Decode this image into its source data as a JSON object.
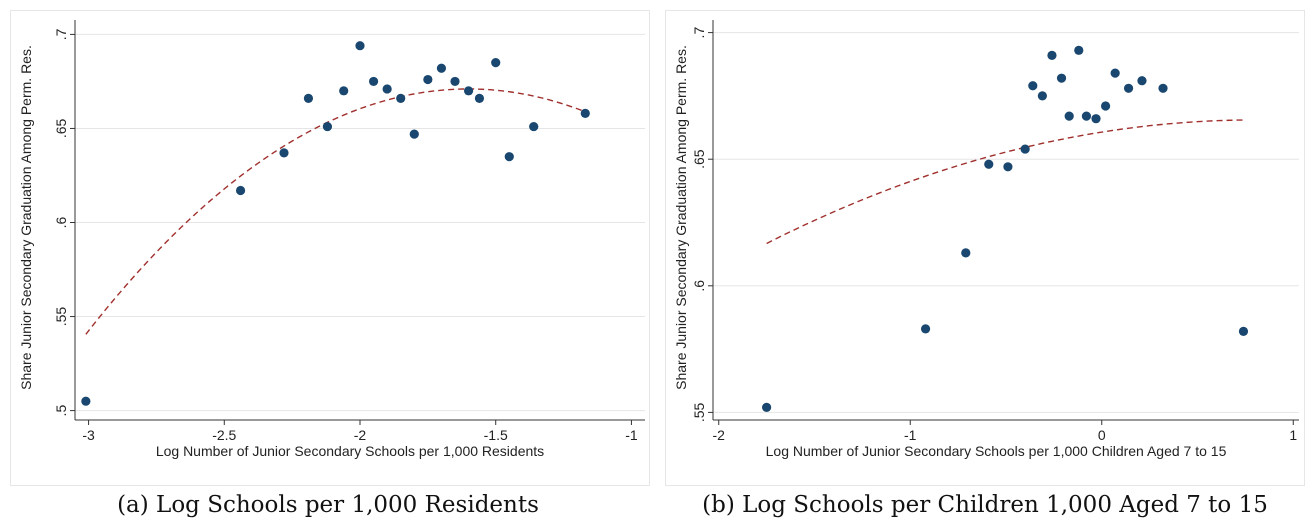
{
  "chart_data": [
    {
      "type": "scatter",
      "xlabel": "Log Number of Junior Secondary Schools per 1,000 Residents",
      "ylabel": "Share Junior Secondary Graduation Among Perm. Res.",
      "xlim": [
        -3.05,
        -0.95
      ],
      "ylim": [
        0.495,
        0.705
      ],
      "xticks": [
        -3,
        -2.5,
        -2,
        -1.5,
        -1
      ],
      "xtick_labels": [
        "-3",
        "-2.5",
        "-2",
        "-1.5",
        "-1"
      ],
      "yticks": [
        0.5,
        0.55,
        0.6,
        0.65,
        0.7
      ],
      "ytick_labels": [
        ".5",
        ".55",
        ".6",
        ".65",
        ".7"
      ],
      "grid": true,
      "points": [
        {
          "x": -3.01,
          "y": 0.505
        },
        {
          "x": -2.44,
          "y": 0.617
        },
        {
          "x": -2.28,
          "y": 0.637
        },
        {
          "x": -2.19,
          "y": 0.666
        },
        {
          "x": -2.12,
          "y": 0.651
        },
        {
          "x": -2.06,
          "y": 0.67
        },
        {
          "x": -2.0,
          "y": 0.694
        },
        {
          "x": -1.95,
          "y": 0.675
        },
        {
          "x": -1.9,
          "y": 0.671
        },
        {
          "x": -1.85,
          "y": 0.666
        },
        {
          "x": -1.8,
          "y": 0.647
        },
        {
          "x": -1.75,
          "y": 0.676
        },
        {
          "x": -1.7,
          "y": 0.682
        },
        {
          "x": -1.65,
          "y": 0.675
        },
        {
          "x": -1.6,
          "y": 0.67
        },
        {
          "x": -1.56,
          "y": 0.666
        },
        {
          "x": -1.5,
          "y": 0.685
        },
        {
          "x": -1.45,
          "y": 0.635
        },
        {
          "x": -1.36,
          "y": 0.651
        },
        {
          "x": -1.17,
          "y": 0.658
        }
      ],
      "fit": {
        "type": "quadratic",
        "x_range": [
          -3.01,
          -1.17
        ],
        "vertex_x": -1.6,
        "vertex_y": 0.671,
        "a": -0.0656
      }
    },
    {
      "type": "scatter",
      "xlabel": "Log Number of Junior Secondary Schools per 1,000 Children Aged 7 to 15",
      "ylabel": "Share Junior Secondary Graduation Among Perm. Res.",
      "xlim": [
        -2.03,
        1.03
      ],
      "ylim": [
        0.547,
        0.703
      ],
      "xticks": [
        -2,
        -1,
        0,
        1
      ],
      "xtick_labels": [
        "-2",
        "-1",
        "0",
        "1"
      ],
      "yticks": [
        0.55,
        0.6,
        0.65,
        0.7
      ],
      "ytick_labels": [
        ".55",
        ".6",
        ".65",
        ".7"
      ],
      "grid": true,
      "points": [
        {
          "x": -1.75,
          "y": 0.552
        },
        {
          "x": -0.92,
          "y": 0.583
        },
        {
          "x": -0.71,
          "y": 0.613
        },
        {
          "x": -0.59,
          "y": 0.648
        },
        {
          "x": -0.49,
          "y": 0.647
        },
        {
          "x": -0.4,
          "y": 0.654
        },
        {
          "x": -0.36,
          "y": 0.679
        },
        {
          "x": -0.31,
          "y": 0.675
        },
        {
          "x": -0.26,
          "y": 0.691
        },
        {
          "x": -0.21,
          "y": 0.682
        },
        {
          "x": -0.17,
          "y": 0.667
        },
        {
          "x": -0.12,
          "y": 0.693
        },
        {
          "x": -0.08,
          "y": 0.667
        },
        {
          "x": -0.03,
          "y": 0.666
        },
        {
          "x": 0.02,
          "y": 0.671
        },
        {
          "x": 0.07,
          "y": 0.684
        },
        {
          "x": 0.14,
          "y": 0.678
        },
        {
          "x": 0.21,
          "y": 0.681
        },
        {
          "x": 0.32,
          "y": 0.678
        },
        {
          "x": 0.74,
          "y": 0.582
        }
      ],
      "fit": {
        "type": "quadratic",
        "x_range": [
          -1.75,
          0.74
        ],
        "vertex_x": 0.8,
        "vertex_y": 0.6655,
        "a": -0.0075
      }
    }
  ],
  "captions": {
    "left": "(a) Log Schools per 1,000 Residents",
    "right": "(b) Log Schools per Children 1,000 Aged 7 to 15"
  },
  "colors": {
    "marker": "#1a476f",
    "fit": "#a0302d",
    "grid": "#e5e5e5",
    "frame": "#e6e6e6"
  }
}
